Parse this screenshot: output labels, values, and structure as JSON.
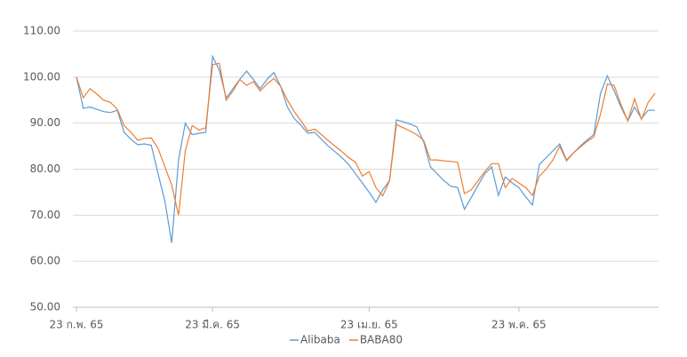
{
  "chart_data": {
    "type": "line",
    "categories": [
      "23 ก.พ. 65",
      null,
      null,
      null,
      null,
      null,
      null,
      null,
      null,
      null,
      null,
      null,
      null,
      null,
      null,
      null,
      null,
      null,
      null,
      null,
      "23 มี.ค. 65",
      null,
      null,
      null,
      null,
      null,
      null,
      null,
      null,
      null,
      null,
      null,
      null,
      null,
      null,
      null,
      null,
      null,
      null,
      null,
      null,
      null,
      null,
      "23 เม.ย. 65",
      null,
      null,
      null,
      null,
      null,
      null,
      null,
      null,
      null,
      null,
      null,
      null,
      null,
      null,
      null,
      null,
      null,
      null,
      null,
      null,
      null,
      "23 พ.ค. 65",
      null,
      null,
      null,
      null,
      null,
      null,
      null,
      null,
      null,
      null,
      null,
      null,
      null,
      null,
      null,
      null,
      null,
      null,
      null,
      null
    ],
    "series": [
      {
        "name": "Alibaba",
        "color": "#5b9bd5",
        "values": [
          100,
          93.2,
          93.5,
          93,
          92.5,
          92.3,
          92.8,
          88,
          86.5,
          85.3,
          85.5,
          85.2,
          79,
          73,
          64,
          82,
          90,
          87.5,
          87.8,
          88,
          104.5,
          101.5,
          95.5,
          97.5,
          99.5,
          101.3,
          99.5,
          97.5,
          99.5,
          101,
          98,
          93.5,
          91,
          89.5,
          87.8,
          88,
          86.5,
          85,
          83.8,
          82.5,
          81,
          79,
          77,
          75,
          72.8,
          75.5,
          77.5,
          90.7,
          90.3,
          89.8,
          89.2,
          86,
          80.5,
          79,
          77.5,
          76.3,
          76,
          71.3,
          73.8,
          76.5,
          79,
          80.5,
          74.3,
          78.3,
          77,
          76,
          74,
          72.2,
          81,
          82.5,
          84,
          85.5,
          82,
          83.5,
          85,
          86.3,
          87.5,
          96.5,
          100.3,
          97,
          93.5,
          90.5,
          93.5,
          91,
          92.8,
          92.8
        ]
      },
      {
        "name": "BABA80",
        "color": "#ed7d31",
        "values": [
          100,
          95.5,
          97.5,
          96.3,
          95,
          94.5,
          93,
          89.5,
          88,
          86.3,
          86.7,
          86.8,
          84.5,
          80.5,
          76.5,
          70,
          84,
          89.5,
          88.5,
          89,
          102.7,
          103,
          95,
          97,
          99.5,
          98.2,
          99,
          97,
          98.5,
          99.7,
          98,
          95,
          92.5,
          90.5,
          88.3,
          88.7,
          87.5,
          86.2,
          85,
          83.8,
          82.5,
          81.5,
          78.5,
          79.5,
          76,
          74.2,
          77.5,
          89.7,
          89,
          88.3,
          87.5,
          86.3,
          82,
          82,
          81.8,
          81.7,
          81.5,
          74.7,
          75.5,
          77.5,
          79.5,
          81.2,
          81.2,
          76,
          78,
          77,
          76,
          74.3,
          78.5,
          80,
          82,
          85,
          81.8,
          83.5,
          84.8,
          86,
          87,
          92,
          98.5,
          98.2,
          94,
          90.5,
          95.3,
          90.8,
          94.5,
          96.5
        ]
      }
    ],
    "ylim": [
      50,
      110
    ],
    "yticks": [
      {
        "value": 50,
        "label": "50.00"
      },
      {
        "value": 60,
        "label": "60.00"
      },
      {
        "value": 70,
        "label": "70.00"
      },
      {
        "value": 80,
        "label": "80.00"
      },
      {
        "value": 90,
        "label": "90.00"
      },
      {
        "value": 100,
        "label": "100.00"
      },
      {
        "value": 110,
        "label": "110.00"
      }
    ],
    "grid": true,
    "legend": "bottom"
  }
}
